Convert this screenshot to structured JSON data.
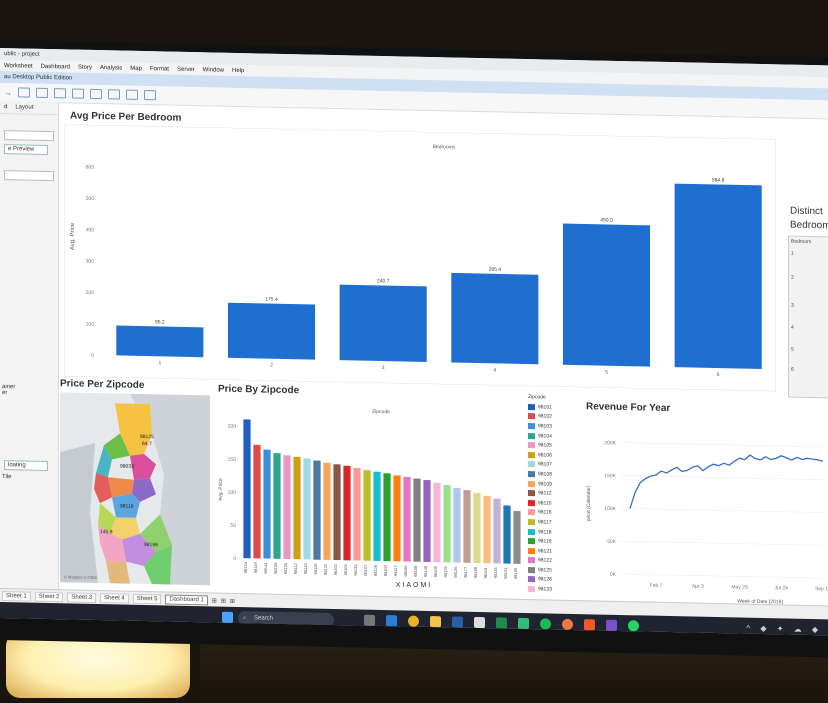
{
  "window": {
    "title": "ublic - project",
    "app_title": "au Desktop Public Edition"
  },
  "menu": [
    "Worksheet",
    "Dashboard",
    "Story",
    "Analysis",
    "Map",
    "Format",
    "Server",
    "Window",
    "Help"
  ],
  "sidebar": {
    "tab_left": "d",
    "tab_layout": "Layout",
    "preview_button": "e Preview",
    "floating_button": "loating",
    "label_ainer": "ainer",
    "label_er": "er",
    "label_tile": "Tile"
  },
  "panels": {
    "avg_price": {
      "title": "Avg Price Per Bedroom",
      "header": "Bedrooms",
      "ylabel": "Avg. Price",
      "yticks": [
        "600",
        "500",
        "400",
        "300",
        "200",
        "100",
        "0"
      ]
    },
    "distinct": {
      "title_1": "Distinct",
      "title_2": "Bedroom",
      "header": "Bedroom",
      "rows": [
        "1",
        "2",
        "3",
        "4",
        "5",
        "6"
      ]
    },
    "zipcode_map": {
      "title": "Price Per Zipcode",
      "labels": [
        "98125",
        "64.7",
        "98033",
        "98118",
        "145.8",
        "98198"
      ],
      "credit": "© Mapbox © OSM"
    },
    "price_by_zip": {
      "title": "Price By Zipcode",
      "header": "Zipcode",
      "ylabel": "Avg. Price",
      "yticks": [
        "200",
        "150",
        "100",
        "50",
        "0"
      ]
    },
    "legend": {
      "title": "Zipcode",
      "items": [
        "98101",
        "98102",
        "98103",
        "98104",
        "98105",
        "98106",
        "98107",
        "98108",
        "98109",
        "98112",
        "98115",
        "98116",
        "98117",
        "98118",
        "98119",
        "98121",
        "98122",
        "98125",
        "98126",
        "98133"
      ]
    },
    "revenue": {
      "title": "Revenue For Year",
      "ylabel": "price (Calendar)",
      "yticks": [
        "200K",
        "150K",
        "100K",
        "50K",
        "0K"
      ],
      "xticks": [
        "Feb 7",
        "Apr 3",
        "May 29",
        "Jul 24",
        "Sep 18"
      ],
      "xlabel": "Week of Date [2016]"
    }
  },
  "chart_data": [
    {
      "type": "bar",
      "title": "Avg Price Per Bedroom",
      "xlabel": "Bedrooms",
      "ylabel": "Avg. Price",
      "categories": [
        "1",
        "2",
        "3",
        "4",
        "5",
        "6"
      ],
      "values": [
        95.2,
        175.4,
        240.7,
        285.4,
        450.0,
        584.8
      ],
      "data_labels": [
        "95.2",
        "175.4",
        "240.7",
        "285.4",
        "450.0",
        "584.8"
      ],
      "ylim": [
        0,
        650
      ],
      "color": "#1f6fd1"
    },
    {
      "type": "bar",
      "title": "Price By Zipcode",
      "xlabel": "Zipcode",
      "ylabel": "Avg. Price",
      "categories": [
        "98134",
        "98119",
        "98144",
        "98109",
        "98126",
        "98112",
        "98118",
        "98116",
        "98122",
        "98102",
        "98104",
        "98133",
        "98107",
        "98125",
        "98103",
        "98117",
        "98106",
        "98108",
        "98146",
        "98105",
        "98178",
        "98136",
        "98177",
        "98199",
        "98101",
        "98115",
        "98121",
        "98155"
      ],
      "values": [
        210,
        172,
        165,
        160,
        157,
        155,
        153,
        150,
        147,
        145,
        143,
        140,
        137,
        135,
        133,
        130,
        128,
        126,
        124,
        120,
        117,
        113,
        110,
        106,
        102,
        98,
        88,
        80
      ],
      "colors": [
        "#1f5fbf",
        "#e04a4a",
        "#3b8fd9",
        "#2fa58e",
        "#e996c8",
        "#cfa017",
        "#9edae5",
        "#4e79a7",
        "#f6a65a",
        "#8c564b",
        "#d62728",
        "#ff9896",
        "#bcbd22",
        "#17becf",
        "#2ca02c",
        "#ff7f0e",
        "#e377c2",
        "#7f7f7f",
        "#9467bd",
        "#f7b6d2",
        "#98df8a",
        "#aec7e8",
        "#c49c94",
        "#dbdb8d",
        "#ffbb78",
        "#c5b0d5",
        "#1f77b4",
        "#8c8c8c"
      ],
      "ylim": [
        0,
        215
      ]
    },
    {
      "type": "line",
      "title": "Revenue For Year",
      "xlabel": "Week of Date [2016]",
      "ylabel": "price (Calendar)",
      "x": [
        "Jan 3",
        "Jan 10",
        "Jan 17",
        "Jan 24",
        "Jan 31",
        "Feb 7",
        "Feb 14",
        "Feb 21",
        "Feb 28",
        "Mar 6",
        "Mar 13",
        "Mar 20",
        "Mar 27",
        "Apr 3",
        "Apr 10",
        "Apr 17",
        "Apr 24",
        "May 1",
        "May 8",
        "May 15",
        "May 22",
        "May 29",
        "Jun 5",
        "Jun 12",
        "Jun 19",
        "Jun 26",
        "Jul 3",
        "Jul 10",
        "Jul 17",
        "Jul 24",
        "Jul 31",
        "Aug 7",
        "Aug 14",
        "Aug 21",
        "Aug 28",
        "Sep 4",
        "Sep 11",
        "Sep 18"
      ],
      "y": [
        100000,
        125000,
        140000,
        146000,
        150000,
        152000,
        158000,
        155000,
        160000,
        164000,
        158000,
        160000,
        165000,
        167000,
        160000,
        166000,
        170000,
        168000,
        172000,
        169000,
        175000,
        180000,
        178000,
        185000,
        180000,
        178000,
        183000,
        179000,
        181000,
        185000,
        182000,
        179000,
        183000,
        180000,
        182000,
        181000,
        180000,
        178000
      ],
      "ylim": [
        0,
        210000
      ],
      "color": "#3b6fc2"
    }
  ],
  "sheet_tabs": [
    "Sheet 1",
    "Sheet 2",
    "Sheet 3",
    "Sheet 4",
    "Sheet 5",
    "Dashboard 1"
  ],
  "taskbar": {
    "search_label": "Search"
  },
  "monitor_brand": "XIAOMI"
}
